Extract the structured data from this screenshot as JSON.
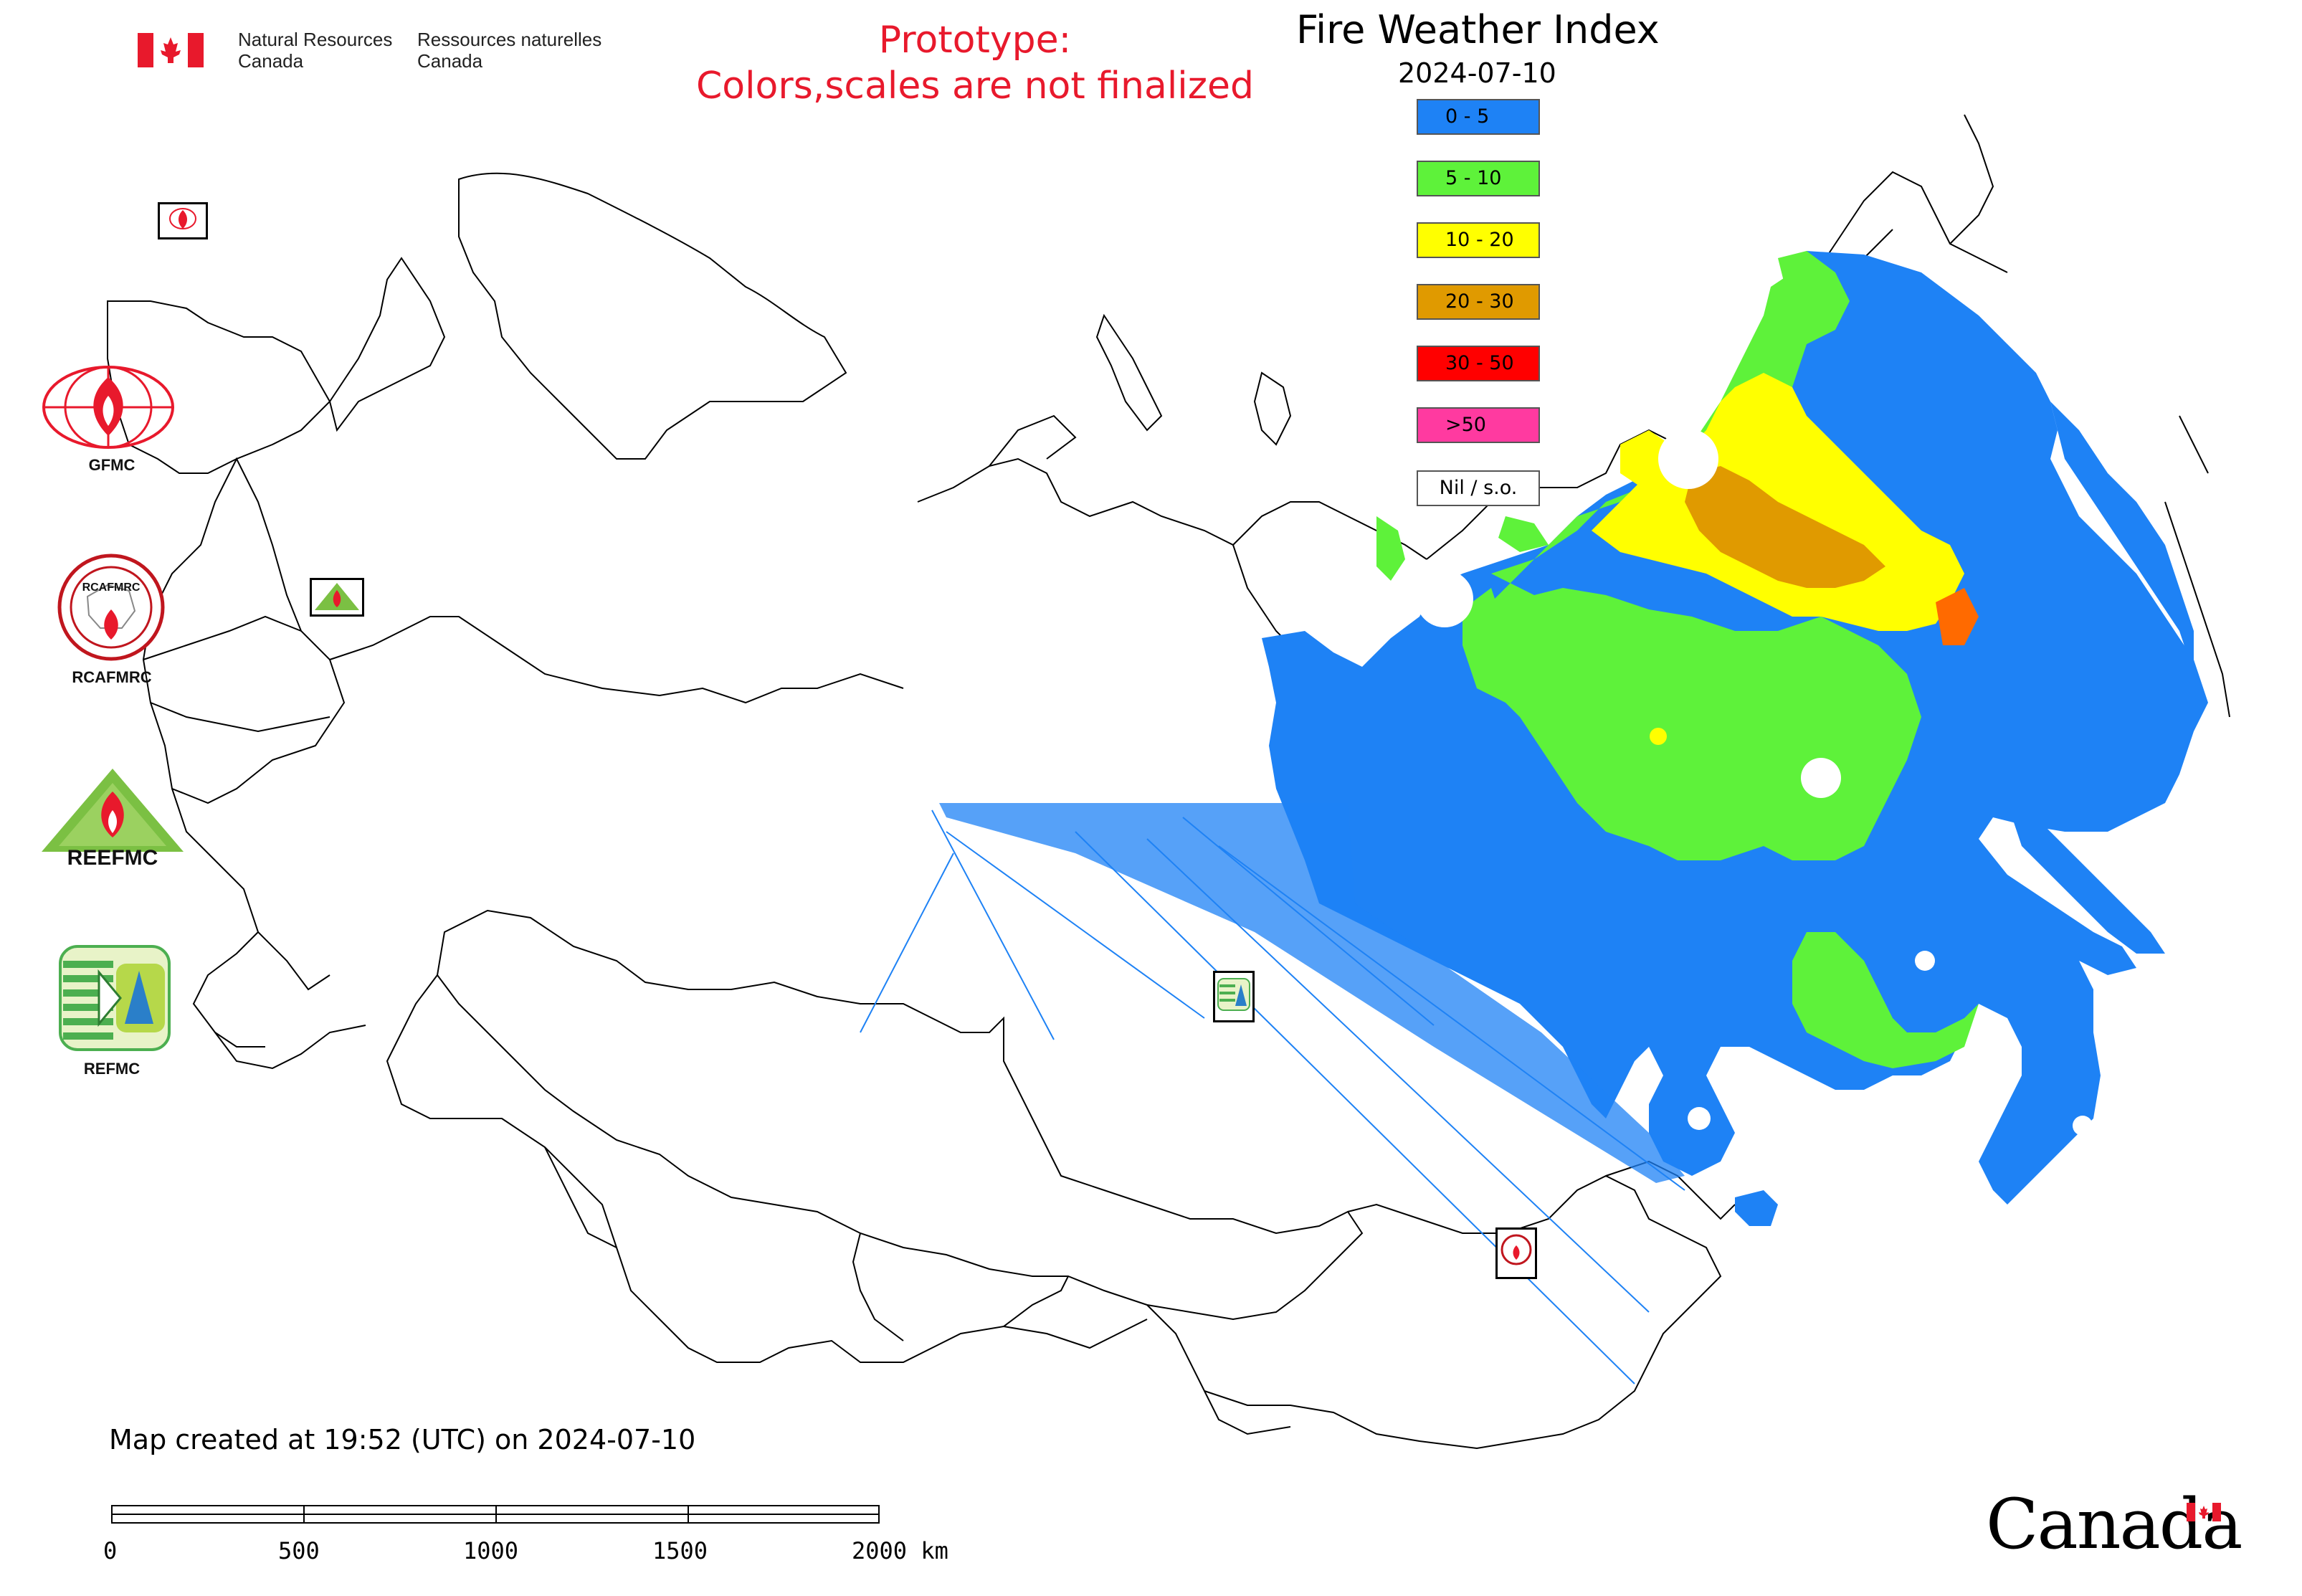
{
  "header": {
    "org_en_line1": "Natural Resources",
    "org_en_line2": "Canada",
    "org_fr_line1": "Ressources naturelles",
    "org_fr_line2": "Canada",
    "prototype_line1": "Prototype:",
    "prototype_line2": "Colors,scales are not finalized"
  },
  "map": {
    "title": "Fire Weather Index",
    "date": "2024-07-10",
    "legend": [
      {
        "label": "0 - 5",
        "color": "#1e82f5"
      },
      {
        "label": "5 - 10",
        "color": "#5ef23a"
      },
      {
        "label": "10 - 20",
        "color": "#ffff00"
      },
      {
        "label": "20 - 30",
        "color": "#e09a00"
      },
      {
        "label": "30 - 50",
        "color": "#ff0000"
      },
      {
        "label": ">50",
        "color": "#ff3aa0"
      },
      {
        "label": "Nil / s.o.",
        "color": "#ffffff"
      }
    ]
  },
  "orgs": [
    {
      "label": "GFMC"
    },
    {
      "label": "RCAFMRC"
    },
    {
      "label": "REFMC"
    }
  ],
  "logo_texts": {
    "reefmc_word": "REEFMC",
    "rcafmrc_inner": "RCAFMRC"
  },
  "footer": {
    "created": "Map created at 19:52 (UTC) on 2024-07-10",
    "scale_labels": [
      "0",
      "500",
      "1000",
      "1500",
      "2000 km"
    ],
    "wordmark": "Canada"
  },
  "colors": {
    "blue": "#1e82f5",
    "green": "#5ef23a",
    "yellow": "#ffff00",
    "orange": "#e09a00",
    "red": "#ff0000",
    "canada_red": "#e8192c"
  }
}
